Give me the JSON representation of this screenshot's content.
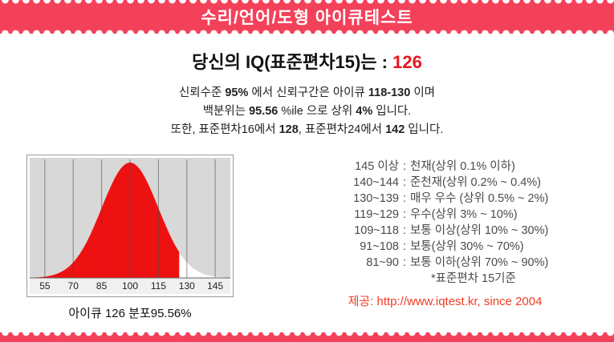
{
  "banner": {
    "title": "수리/언어/도형 아이큐테스트"
  },
  "result": {
    "title_prefix": "당신의 IQ(표준편차15)는 : ",
    "iq": "126"
  },
  "summary": {
    "line1": {
      "pre": "신뢰수준 ",
      "b1": "95%",
      "mid": " 에서 신뢰구간은 아이큐 ",
      "b2": "118-130",
      "post": " 이며"
    },
    "line2": {
      "pre": "백분위는 ",
      "b1": "95.56",
      "mid": " %ile 으로 상위 ",
      "b2": "4%",
      "post": " 입니다."
    },
    "line3": {
      "pre": "또한, 표준편차16에서 ",
      "b1": "128",
      "mid": ", 표준편차24에서 ",
      "b2": "142",
      "post": " 입니다."
    }
  },
  "chart": {
    "caption": "아이큐 126  분포95.56%"
  },
  "chart_data": {
    "type": "area",
    "title": "IQ normal distribution with marked score",
    "mean": 100,
    "sd": 15,
    "marked_iq": 126,
    "percentile": 95.56,
    "x_ticks": [
      55,
      70,
      85,
      100,
      115,
      130,
      145
    ],
    "x_range": [
      47,
      153
    ],
    "grid": true,
    "colors": {
      "plot_bg": "#d8d8d8",
      "label_bg": "#f0f0f0",
      "curve_bg": "#ffffff",
      "marked_fill": "#ee1111",
      "grid": "#4a4a4a"
    }
  },
  "results_table": {
    "separator": ":",
    "items": [
      {
        "range": "145 이상",
        "label": "천재(상위 0.1% 이하)"
      },
      {
        "range": "140~144",
        "label": "준천재(상위 0.2% ~ 0.4%)"
      },
      {
        "range": "130~139",
        "label": "매우 우수 (상위 0.5% ~ 2%)"
      },
      {
        "range": "119~129",
        "label": "우수(상위 3% ~ 10%)"
      },
      {
        "range": "109~118",
        "label": "보통 이상(상위 10% ~ 30%)"
      },
      {
        "range": "91~108",
        "label": "보통(상위 30% ~ 70%)"
      },
      {
        "range": "81~90",
        "label": "보통 이하(상위 70% ~ 90%)"
      }
    ],
    "note": "*표준편차 15기준"
  },
  "provider": {
    "label": "제공: http://www.iqtest.kr, since 2004"
  },
  "colors": {
    "banner_pink": "#f4415a",
    "iq_red": "#e8141e",
    "provider_red": "#f23b25",
    "chart_red": "#ee1111"
  }
}
